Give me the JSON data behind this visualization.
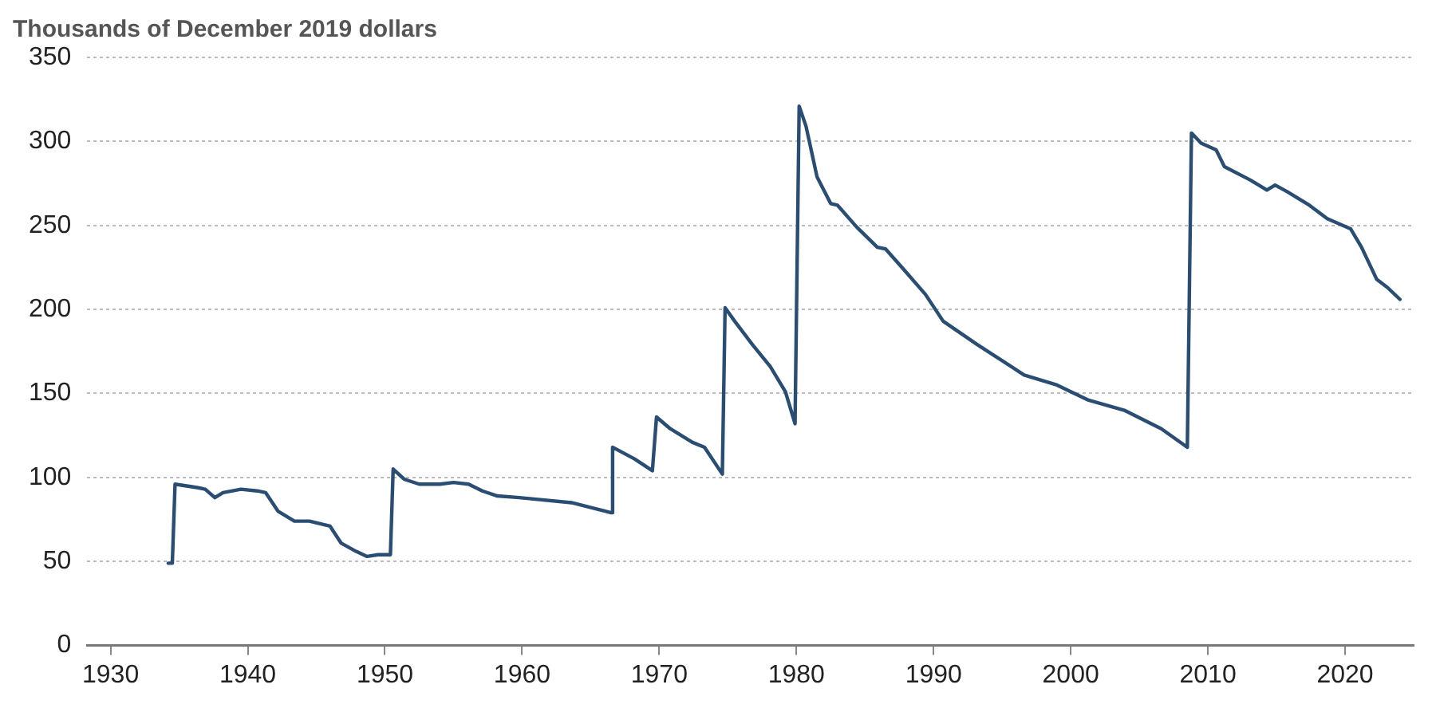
{
  "chart_data": {
    "type": "line",
    "ylabel": "Thousands of December 2019 dollars",
    "x": [
      1934.2,
      1934.5,
      1934.7,
      1936.3,
      1936.9,
      1937.6,
      1938.2,
      1939.5,
      1940.7,
      1941.3,
      1942.2,
      1943.4,
      1944.5,
      1946.0,
      1946.8,
      1947.9,
      1948.7,
      1949.5,
      1950.4,
      1950.6,
      1951.4,
      1952.5,
      1954.0,
      1955.0,
      1956.1,
      1957.1,
      1958.2,
      1959.8,
      1963.6,
      1966.5,
      1966.6,
      1968.2,
      1969.5,
      1969.8,
      1970.8,
      1972.4,
      1973.3,
      1974.6,
      1974.8,
      1975.5,
      1976.8,
      1978.1,
      1979.2,
      1979.9,
      1980.2,
      1980.7,
      1981.5,
      1982.5,
      1983.0,
      1984.4,
      1985.9,
      1986.5,
      1987.8,
      1989.4,
      1990.7,
      1993.2,
      1996.6,
      1999.0,
      2001.3,
      2003.9,
      2006.6,
      2008.5,
      2008.8,
      2009.5,
      2010.6,
      2011.2,
      2013.1,
      2014.3,
      2014.9,
      2015.8,
      2017.4,
      2018.7,
      2020.4,
      2021.2,
      2022.3,
      2023.1,
      2024.0
    ],
    "series": [
      {
        "color": "#2a4d74",
        "values": [
          49,
          49,
          96,
          94,
          93,
          88,
          91,
          93,
          92,
          91,
          80,
          74,
          74,
          71,
          61,
          56,
          53,
          54,
          54,
          105,
          99,
          96,
          96,
          97,
          96,
          92,
          89,
          88,
          85,
          79,
          118,
          111,
          104,
          136,
          129,
          121,
          118,
          102,
          201,
          193,
          179,
          166,
          151,
          132,
          321,
          309,
          279,
          263,
          262,
          249,
          237,
          236,
          224,
          209,
          193,
          179,
          161,
          155,
          146,
          140,
          129,
          118,
          305,
          299,
          295,
          285,
          277,
          271,
          274,
          270,
          262,
          254,
          248,
          237,
          218,
          213,
          206
        ]
      }
    ],
    "xlim": [
      1928.3,
      2025
    ],
    "xticks": [
      1930,
      1940,
      1950,
      1960,
      1970,
      1980,
      1990,
      2000,
      2010,
      2020
    ],
    "ylim": [
      0,
      350
    ],
    "yticks": [
      0,
      50,
      100,
      150,
      200,
      250,
      300,
      350
    ],
    "grid": "y",
    "legend": false,
    "marker": "none",
    "line_style": "solid"
  }
}
